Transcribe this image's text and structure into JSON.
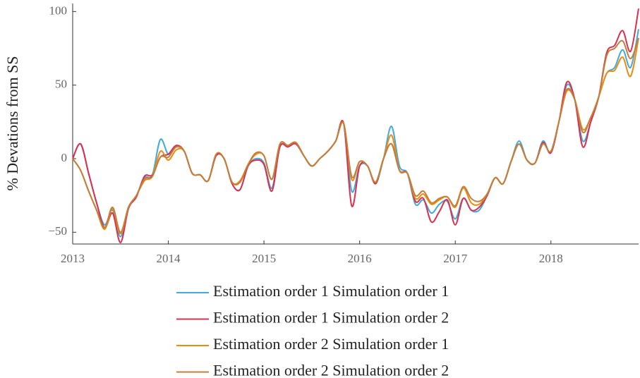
{
  "chart_data": {
    "type": "line",
    "y_label": "% Devations from SS",
    "x": [
      2013,
      2013.0833,
      2013.1667,
      2013.25,
      2013.3333,
      2013.4167,
      2013.5,
      2013.5833,
      2013.6667,
      2013.75,
      2013.8333,
      2013.9167,
      2014,
      2014.0833,
      2014.1667,
      2014.25,
      2014.3333,
      2014.4167,
      2014.5,
      2014.5833,
      2014.6667,
      2014.75,
      2014.8333,
      2014.9167,
      2015,
      2015.0833,
      2015.1667,
      2015.25,
      2015.3333,
      2015.4167,
      2015.5,
      2015.5833,
      2015.6667,
      2015.75,
      2015.8333,
      2015.9167,
      2016,
      2016.0833,
      2016.1667,
      2016.25,
      2016.3333,
      2016.4167,
      2016.5,
      2016.5833,
      2016.6667,
      2016.75,
      2016.8333,
      2016.9167,
      2017,
      2017.0833,
      2017.1667,
      2017.25,
      2017.3333,
      2017.4167,
      2017.5,
      2017.5833,
      2017.6667,
      2017.75,
      2017.8333,
      2017.9167,
      2018,
      2018.0833,
      2018.1667,
      2018.25,
      2018.3333,
      2018.4167,
      2018.5,
      2018.5833,
      2018.6667,
      2018.75,
      2018.8333,
      2018.9167
    ],
    "series": [
      {
        "name": "Estimation order 1 Simulation order 1",
        "color": "#3fa9e0",
        "values": [
          0,
          10,
          -10,
          -30,
          -45,
          -35,
          -53,
          -33,
          -25,
          -13,
          -11,
          13,
          3,
          8,
          5,
          -10,
          -11,
          -15,
          2,
          0,
          -17,
          -21,
          -5,
          0,
          -3,
          -20,
          8,
          8,
          11,
          2,
          -5,
          0,
          5,
          12,
          24,
          -22,
          -5,
          -5,
          -17,
          0,
          22,
          -5,
          -10,
          -31,
          -28,
          -37,
          -31,
          -29,
          -41,
          -27,
          -35,
          -35,
          -25,
          -13,
          -17,
          -2,
          12,
          -1,
          -3,
          12,
          4,
          25,
          50,
          40,
          12,
          25,
          42,
          58,
          62,
          74,
          62,
          88
        ]
      },
      {
        "name": "Estimation order 1 Simulation order 2",
        "color": "#dc2f4d",
        "values": [
          0,
          10,
          -10,
          -30,
          -47,
          -37,
          -57,
          -34,
          -26,
          -12,
          -11,
          1,
          3,
          9,
          5,
          -10,
          -11,
          -15,
          2,
          0,
          -17,
          -21,
          -5,
          -1,
          -4,
          -22,
          8,
          8,
          10,
          2,
          -5,
          0,
          5,
          12,
          24,
          -32,
          -5,
          -5,
          -17,
          0,
          10,
          -8,
          -10,
          -29,
          -27,
          -43,
          -36,
          -28,
          -45,
          -27,
          -35,
          -33,
          -25,
          -13,
          -17,
          -2,
          10,
          -1,
          -3,
          11,
          4,
          25,
          52,
          40,
          8,
          25,
          42,
          72,
          77,
          87,
          73,
          102
        ]
      },
      {
        "name": "Estimation order 2 Simulation order 1",
        "color": "#f08a0c",
        "values": [
          0,
          -8,
          -22,
          -35,
          -48,
          -34,
          -51,
          -33,
          -25,
          -15,
          -12,
          5,
          -1,
          6,
          5,
          -10,
          -11,
          -15,
          3,
          0,
          -16,
          -15,
          -4,
          3,
          2,
          -14,
          10,
          9,
          11,
          2,
          -5,
          0,
          5,
          12,
          24,
          -14,
          -2,
          -5,
          -16,
          0,
          16,
          -8,
          -10,
          -27,
          -24,
          -31,
          -28,
          -26,
          -33,
          -20,
          -30,
          -31,
          -24,
          -13,
          -17,
          -2,
          10,
          -1,
          -3,
          10,
          5,
          25,
          46,
          40,
          20,
          28,
          42,
          58,
          60,
          69,
          56,
          82
        ]
      },
      {
        "name": "Estimation order 2 Simulation order 2",
        "color": "#c0803c",
        "values": [
          0,
          -8,
          -22,
          -35,
          -47,
          -33,
          -50,
          -33,
          -25,
          -14,
          -12,
          1,
          1,
          8,
          5,
          -10,
          -11,
          -15,
          3,
          0,
          -16,
          -16,
          -4,
          4,
          2,
          -14,
          10,
          9,
          11,
          2,
          -5,
          0,
          5,
          12,
          24,
          -12,
          -2,
          -5,
          -16,
          0,
          10,
          -8,
          -10,
          -25,
          -22,
          -30,
          -27,
          -26,
          -32,
          -19,
          -27,
          -29,
          -24,
          -13,
          -17,
          -2,
          10,
          -1,
          -3,
          10,
          5,
          25,
          47,
          40,
          18,
          28,
          42,
          70,
          75,
          80,
          68,
          82
        ]
      }
    ],
    "xlim": [
      2013,
      2018.9167
    ],
    "xticks": [
      2013,
      2014,
      2015,
      2016,
      2017,
      2018
    ],
    "ylim": [
      -58,
      104
    ],
    "yticks": [
      {
        "value": -50,
        "label": "−50"
      },
      0,
      50,
      100
    ]
  }
}
